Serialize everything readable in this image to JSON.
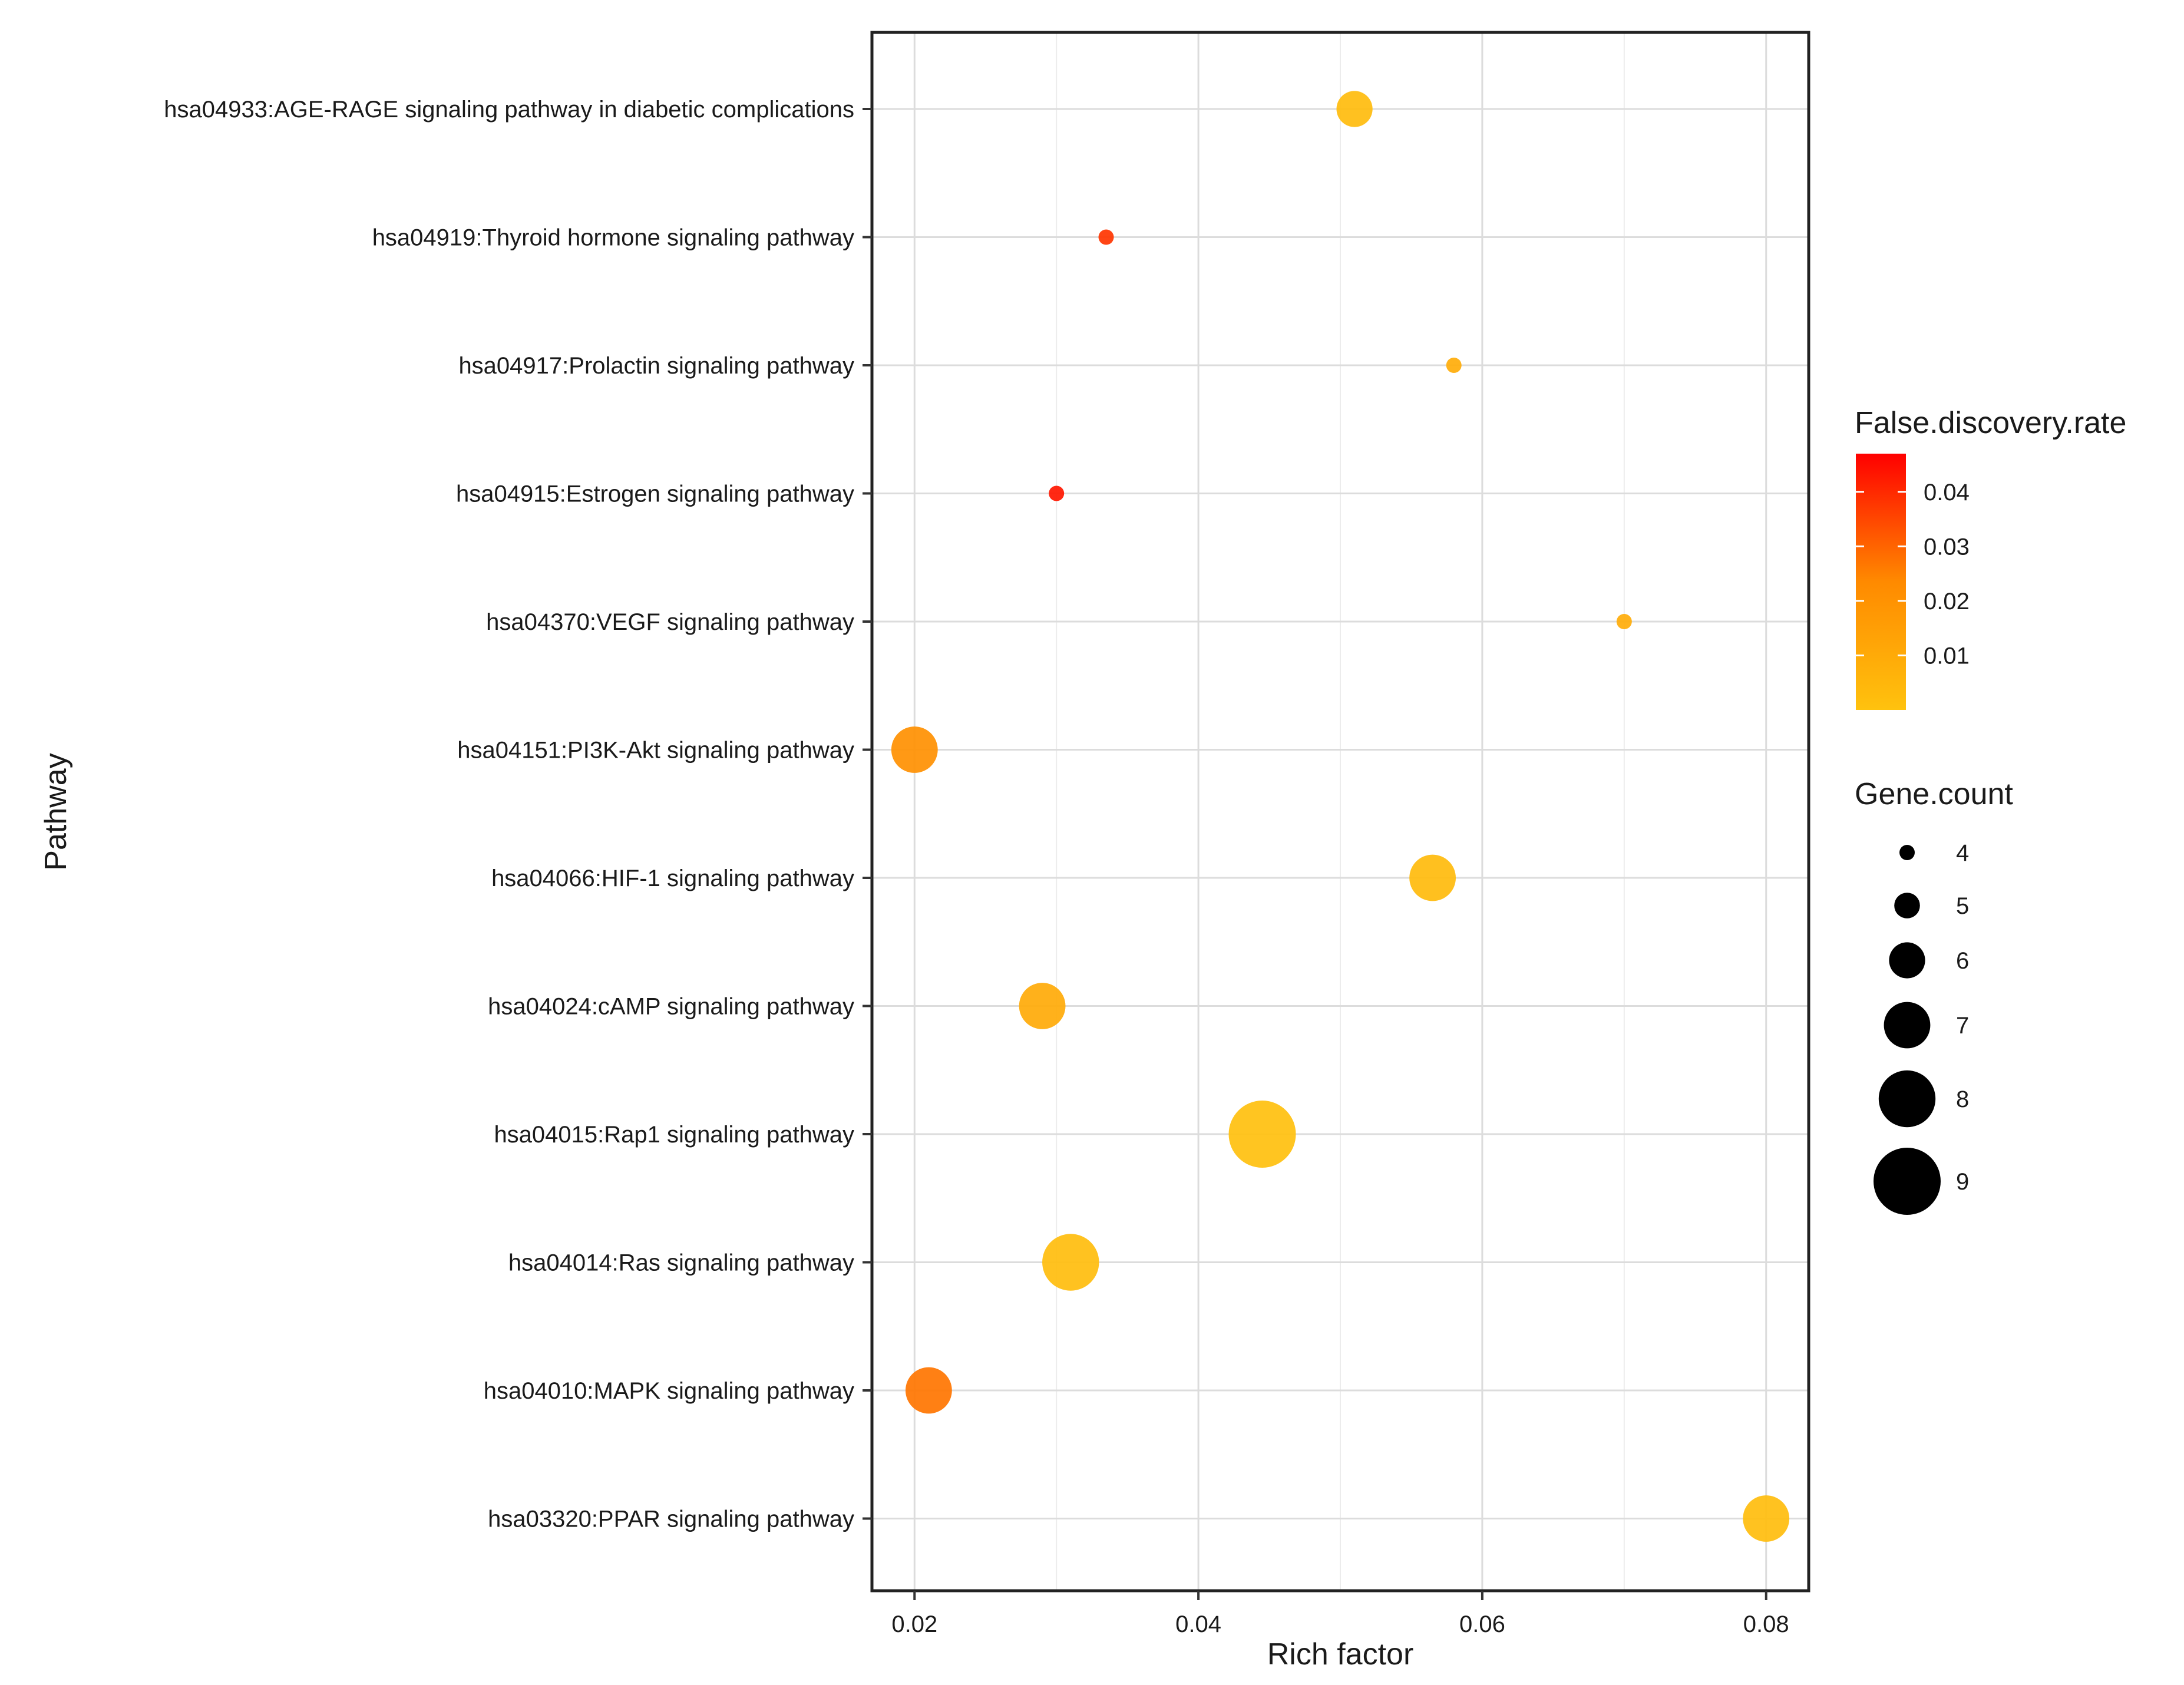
{
  "chart_data": {
    "type": "scatter",
    "subtype": "bubble",
    "title": "",
    "xlabel": "Rich factor",
    "ylabel": "Pathway",
    "xlim": [
      0.017,
      0.083
    ],
    "xticks": [
      0.02,
      0.04,
      0.06,
      0.08
    ],
    "x_tick_labels": [
      "0.02",
      "0.04",
      "0.06",
      "0.08"
    ],
    "grid": true,
    "points": [
      {
        "pathway": "hsa04933:AGE-RAGE signaling pathway in diabetic complications",
        "rich_factor": 0.051,
        "fdr": 0.0025,
        "gene_count": 6
      },
      {
        "pathway": "hsa04919:Thyroid hormone signaling pathway",
        "rich_factor": 0.0335,
        "fdr": 0.038,
        "gene_count": 4
      },
      {
        "pathway": "hsa04917:Prolactin signaling pathway",
        "rich_factor": 0.058,
        "fdr": 0.009,
        "gene_count": 4
      },
      {
        "pathway": "hsa04915:Estrogen signaling pathway",
        "rich_factor": 0.03,
        "fdr": 0.043,
        "gene_count": 4
      },
      {
        "pathway": "hsa04370:VEGF signaling pathway",
        "rich_factor": 0.07,
        "fdr": 0.009,
        "gene_count": 4
      },
      {
        "pathway": "hsa04151:PI3K-Akt signaling pathway",
        "rich_factor": 0.02,
        "fdr": 0.021,
        "gene_count": 7
      },
      {
        "pathway": "hsa04066:HIF-1 signaling pathway",
        "rich_factor": 0.0565,
        "fdr": 0.003,
        "gene_count": 7
      },
      {
        "pathway": "hsa04024:cAMP signaling pathway",
        "rich_factor": 0.029,
        "fdr": 0.01,
        "gene_count": 7
      },
      {
        "pathway": "hsa04015:Rap1 signaling pathway",
        "rich_factor": 0.0445,
        "fdr": 0.0008,
        "gene_count": 9
      },
      {
        "pathway": "hsa04014:Ras signaling pathway",
        "rich_factor": 0.031,
        "fdr": 0.002,
        "gene_count": 8
      },
      {
        "pathway": "hsa04010:MAPK signaling pathway",
        "rich_factor": 0.021,
        "fdr": 0.027,
        "gene_count": 7
      },
      {
        "pathway": "hsa03320:PPAR signaling pathway",
        "rich_factor": 0.08,
        "fdr": 0.002,
        "gene_count": 7
      }
    ],
    "color_legend": {
      "title": "False.discovery.rate",
      "range": [
        0.0,
        0.047
      ],
      "ticks": [
        0.01,
        0.02,
        0.03,
        0.04
      ],
      "tick_labels": [
        "0.01",
        "0.02",
        "0.03",
        "0.04"
      ],
      "low_color": "#FFC20E",
      "mid_color": "#FF8A00",
      "high_color": "#FF0000"
    },
    "size_legend": {
      "title": "Gene.count",
      "values": [
        4,
        5,
        6,
        7,
        8,
        9
      ],
      "labels": [
        "4",
        "5",
        "6",
        "7",
        "8",
        "9"
      ]
    },
    "legend_position": "right"
  }
}
